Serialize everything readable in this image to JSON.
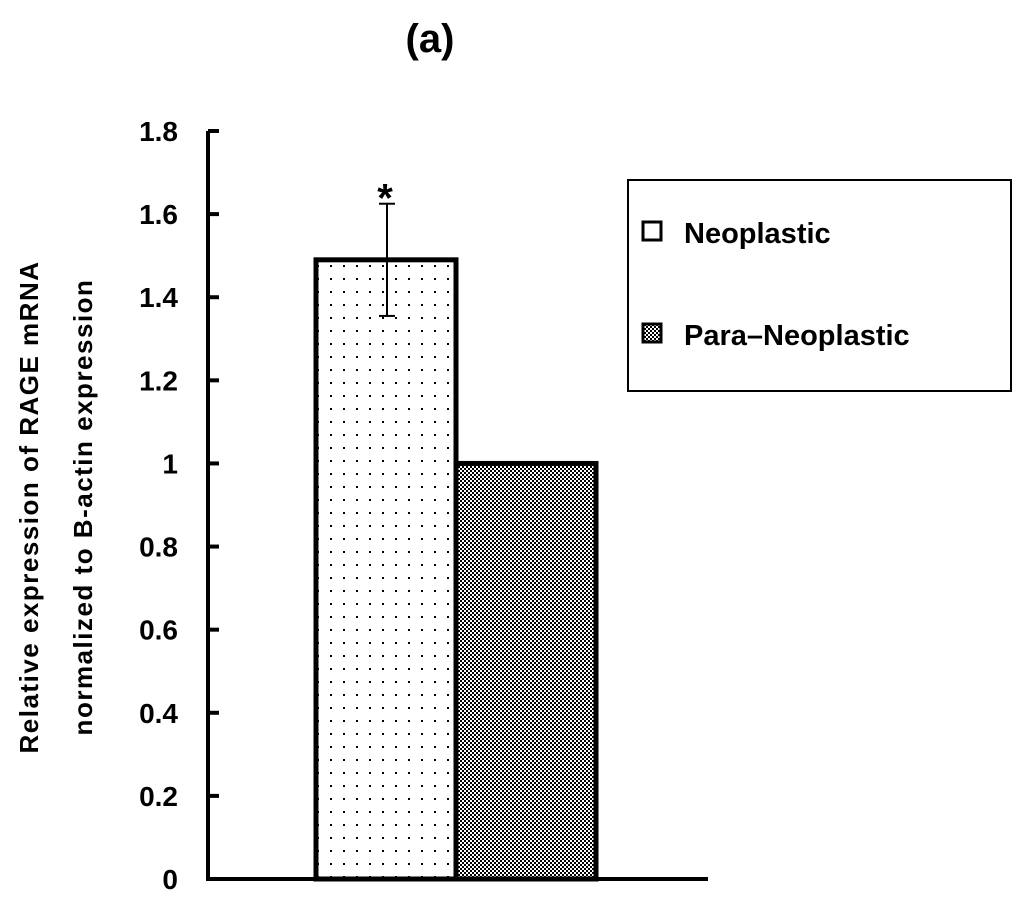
{
  "chart_data": {
    "type": "bar",
    "title": "(a)",
    "ylabel_lines": [
      "Relative expression of RAGE mRNA",
      "normalized to B-actin expression"
    ],
    "xlabel": "",
    "ylim": [
      0,
      1.8
    ],
    "yticks": [
      0,
      0.2,
      0.4,
      0.6,
      0.8,
      1,
      1.2,
      1.4,
      1.6,
      1.8
    ],
    "ytick_labels": [
      "0",
      "0.2",
      "0.4",
      "0.6",
      "0.8",
      "1",
      "1.2",
      "1.4",
      "1.6",
      "1.8"
    ],
    "series": [
      {
        "name": "Neoplastic",
        "value": 1.49,
        "error": 0.135,
        "significance": "*",
        "pattern": "dots"
      },
      {
        "name": "Para-Neoplastic",
        "value": 1.0,
        "pattern": "checker"
      }
    ],
    "legend": {
      "position": "top-right",
      "entries": [
        "Neoplastic",
        "Para–Neoplastic"
      ]
    }
  }
}
